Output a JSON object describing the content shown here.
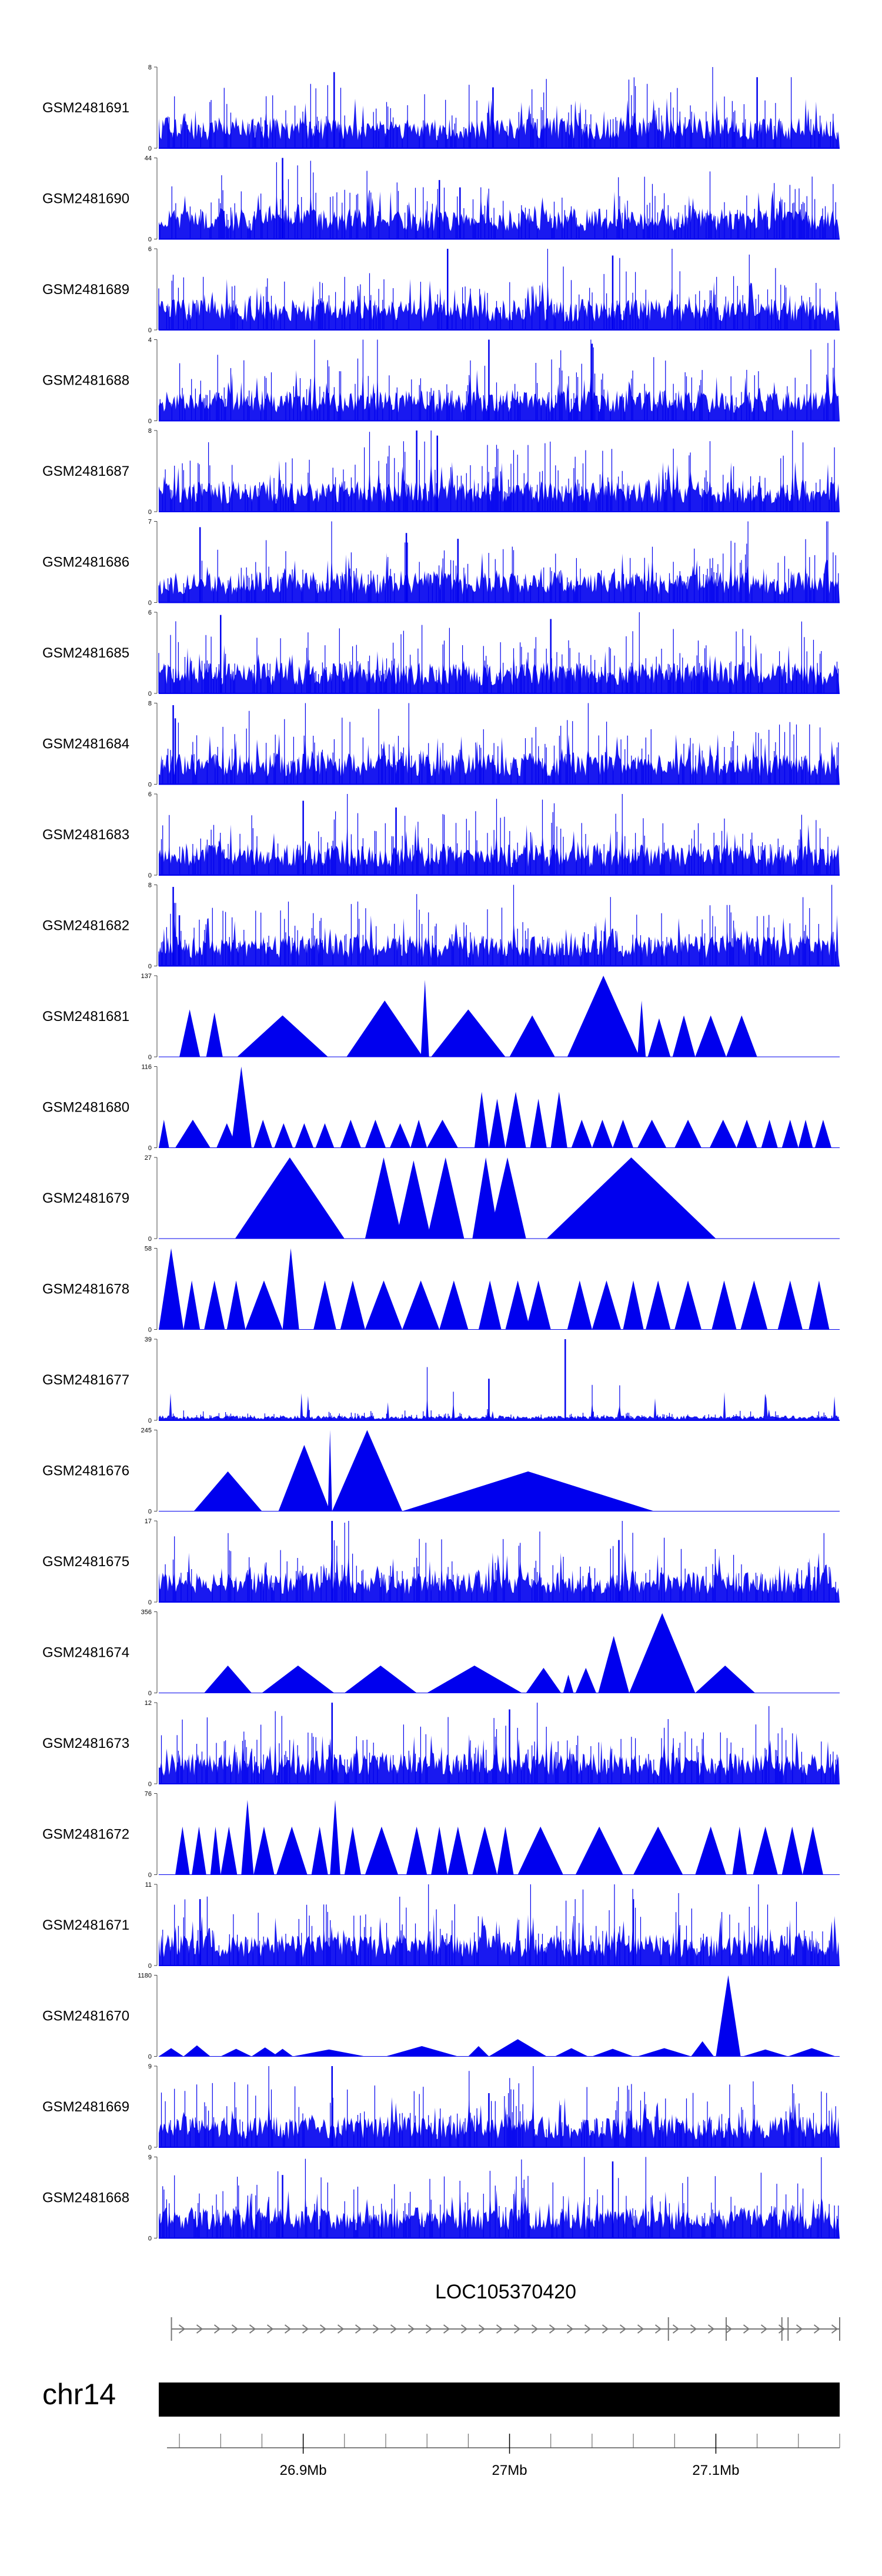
{
  "chart_data": {
    "type": "area",
    "title": "",
    "chromosome": "chr14",
    "color": "#0000ee",
    "xlim": [
      26.83,
      27.16
    ],
    "x_unit": "Mb",
    "x_ticks": [
      {
        "value": 26.9,
        "label": "26.9Mb"
      },
      {
        "value": 27.0,
        "label": "27Mb"
      },
      {
        "value": 27.1,
        "label": "27.1Mb"
      }
    ],
    "gene": {
      "name": "LOC105370420",
      "start": 26.837,
      "end": 27.16,
      "strand": "+",
      "exons": [
        27.077,
        27.105,
        27.132,
        27.135
      ]
    },
    "tracks": [
      {
        "name": "GSM2481691",
        "ymax": 8,
        "style": "dense",
        "seed": 11,
        "peaks": [
          [
            26.915,
            7.5
          ],
          [
            26.992,
            6
          ],
          [
            27.12,
            7
          ]
        ]
      },
      {
        "name": "GSM2481690",
        "ymax": 44,
        "style": "sparse",
        "seed": 12,
        "peaks": [
          [
            26.89,
            44
          ],
          [
            26.966,
            32
          ],
          [
            26.976,
            28
          ]
        ]
      },
      {
        "name": "GSM2481689",
        "ymax": 6,
        "style": "dense",
        "seed": 13,
        "peaks": [
          [
            26.97,
            6
          ],
          [
            27.05,
            5.5
          ]
        ]
      },
      {
        "name": "GSM2481688",
        "ymax": 4,
        "style": "dense",
        "seed": 14,
        "peaks": [
          [
            26.99,
            4
          ],
          [
            27.04,
            3.8
          ]
        ]
      },
      {
        "name": "GSM2481687",
        "ymax": 8,
        "style": "dense",
        "seed": 15,
        "peaks": [
          [
            26.955,
            8
          ],
          [
            26.965,
            7.5
          ]
        ]
      },
      {
        "name": "GSM2481686",
        "ymax": 7,
        "style": "dense",
        "seed": 16,
        "peaks": [
          [
            26.85,
            6.5
          ],
          [
            26.95,
            6
          ],
          [
            26.975,
            5.5
          ]
        ]
      },
      {
        "name": "GSM2481685",
        "ymax": 6,
        "style": "dense",
        "seed": 17,
        "peaks": [
          [
            26.86,
            5.8
          ],
          [
            27.02,
            5.5
          ]
        ]
      },
      {
        "name": "GSM2481684",
        "ymax": 8,
        "style": "dense",
        "seed": 18,
        "peaks": [
          [
            26.837,
            7.8
          ],
          [
            26.838,
            6.5
          ]
        ]
      },
      {
        "name": "GSM2481683",
        "ymax": 6,
        "style": "dense",
        "seed": 19,
        "peaks": [
          [
            26.9,
            5.5
          ],
          [
            26.945,
            5
          ]
        ]
      },
      {
        "name": "GSM2481682",
        "ymax": 8,
        "style": "dense",
        "seed": 20,
        "peaks": [
          [
            26.837,
            7.8
          ],
          [
            26.84,
            5
          ]
        ]
      },
      {
        "name": "GSM2481681",
        "ymax": 137,
        "style": "segments",
        "segments": [
          [
            26.84,
            26.85,
            80
          ],
          [
            26.853,
            26.861,
            75
          ],
          [
            26.868,
            26.912,
            70
          ],
          [
            26.921,
            26.958,
            95
          ],
          [
            26.957,
            26.961,
            130
          ],
          [
            26.962,
            26.998,
            80
          ],
          [
            27.0,
            27.022,
            70
          ],
          [
            27.028,
            27.063,
            137
          ],
          [
            27.062,
            27.066,
            95
          ],
          [
            27.067,
            27.078,
            65
          ],
          [
            27.079,
            27.09,
            70
          ],
          [
            27.09,
            27.105,
            70
          ],
          [
            27.105,
            27.12,
            70
          ]
        ]
      },
      {
        "name": "GSM2481680",
        "ymax": 116,
        "style": "segments",
        "segments": [
          [
            26.83,
            26.835,
            40
          ],
          [
            26.838,
            26.855,
            40
          ],
          [
            26.858,
            26.868,
            35
          ],
          [
            26.865,
            26.875,
            116
          ],
          [
            26.876,
            26.885,
            40
          ],
          [
            26.886,
            26.895,
            35
          ],
          [
            26.896,
            26.905,
            35
          ],
          [
            26.906,
            26.915,
            35
          ],
          [
            26.918,
            26.928,
            40
          ],
          [
            26.93,
            26.94,
            40
          ],
          [
            26.942,
            26.952,
            35
          ],
          [
            26.952,
            26.96,
            40
          ],
          [
            26.96,
            26.975,
            40
          ],
          [
            26.983,
            26.99,
            80
          ],
          [
            26.99,
            26.998,
            70
          ],
          [
            26.998,
            27.008,
            80
          ],
          [
            27.01,
            27.018,
            70
          ],
          [
            27.02,
            27.028,
            80
          ],
          [
            27.03,
            27.04,
            40
          ],
          [
            27.04,
            27.05,
            40
          ],
          [
            27.05,
            27.06,
            40
          ],
          [
            27.062,
            27.076,
            40
          ],
          [
            27.08,
            27.093,
            40
          ],
          [
            27.097,
            27.11,
            40
          ],
          [
            27.11,
            27.12,
            40
          ],
          [
            27.122,
            27.13,
            40
          ],
          [
            27.132,
            27.14,
            40
          ],
          [
            27.14,
            27.147,
            40
          ],
          [
            27.148,
            27.156,
            40
          ]
        ]
      },
      {
        "name": "GSM2481679",
        "ymax": 27,
        "style": "segments",
        "segments": [
          [
            26.867,
            26.92,
            27
          ],
          [
            26.93,
            26.948,
            27
          ],
          [
            26.945,
            26.962,
            26
          ],
          [
            26.96,
            26.978,
            27
          ],
          [
            26.982,
            26.995,
            27
          ],
          [
            26.99,
            27.008,
            27
          ],
          [
            27.018,
            27.1,
            27
          ]
        ]
      },
      {
        "name": "GSM2481678",
        "ymax": 58,
        "style": "segments",
        "segments": [
          [
            26.83,
            26.842,
            58
          ],
          [
            26.842,
            26.85,
            35
          ],
          [
            26.852,
            26.862,
            35
          ],
          [
            26.863,
            26.872,
            35
          ],
          [
            26.872,
            26.89,
            35
          ],
          [
            26.89,
            26.898,
            58
          ],
          [
            26.905,
            26.916,
            35
          ],
          [
            26.918,
            26.93,
            35
          ],
          [
            26.93,
            26.948,
            35
          ],
          [
            26.948,
            26.966,
            35
          ],
          [
            26.966,
            26.98,
            35
          ],
          [
            26.985,
            26.996,
            35
          ],
          [
            26.998,
            27.01,
            35
          ],
          [
            27.008,
            27.02,
            35
          ],
          [
            27.028,
            27.04,
            35
          ],
          [
            27.04,
            27.054,
            35
          ],
          [
            27.055,
            27.065,
            35
          ],
          [
            27.066,
            27.078,
            35
          ],
          [
            27.08,
            27.093,
            35
          ],
          [
            27.098,
            27.11,
            35
          ],
          [
            27.112,
            27.125,
            35
          ],
          [
            27.13,
            27.142,
            35
          ],
          [
            27.145,
            27.155,
            35
          ]
        ]
      },
      {
        "name": "GSM2481677",
        "ymax": 39,
        "style": "dense-low",
        "seed": 21,
        "peaks": [
          [
            26.99,
            20
          ],
          [
            27.027,
            39
          ]
        ]
      },
      {
        "name": "GSM2481676",
        "ymax": 245,
        "style": "segments",
        "segments": [
          [
            26.847,
            26.88,
            120
          ],
          [
            26.888,
            26.913,
            200
          ],
          [
            26.912,
            26.914,
            245
          ],
          [
            26.914,
            26.948,
            245
          ],
          [
            26.948,
            27.07,
            120
          ]
        ]
      },
      {
        "name": "GSM2481675",
        "ymax": 17,
        "style": "dense",
        "seed": 22,
        "peaks": [
          [
            26.914,
            17
          ],
          [
            27.053,
            13
          ]
        ]
      },
      {
        "name": "GSM2481674",
        "ymax": 356,
        "style": "segments",
        "segments": [
          [
            26.852,
            26.875,
            120
          ],
          [
            26.88,
            26.915,
            120
          ],
          [
            26.92,
            26.955,
            120
          ],
          [
            26.96,
            27.006,
            120
          ],
          [
            27.008,
            27.025,
            110
          ],
          [
            27.026,
            27.031,
            80
          ],
          [
            27.032,
            27.042,
            110
          ],
          [
            27.043,
            27.058,
            250
          ],
          [
            27.058,
            27.09,
            350
          ],
          [
            27.09,
            27.119,
            120
          ]
        ]
      },
      {
        "name": "GSM2481673",
        "ymax": 12,
        "style": "dense",
        "seed": 23,
        "peaks": [
          [
            26.914,
            12
          ],
          [
            27.0,
            11
          ]
        ]
      },
      {
        "name": "GSM2481672",
        "ymax": 76,
        "style": "segments",
        "segments": [
          [
            26.838,
            26.845,
            45
          ],
          [
            26.846,
            26.853,
            45
          ],
          [
            26.855,
            26.86,
            45
          ],
          [
            26.86,
            26.868,
            45
          ],
          [
            26.87,
            26.876,
            70
          ],
          [
            26.876,
            26.886,
            45
          ],
          [
            26.887,
            26.902,
            45
          ],
          [
            26.904,
            26.912,
            45
          ],
          [
            26.913,
            26.918,
            70
          ],
          [
            26.92,
            26.928,
            45
          ],
          [
            26.93,
            26.946,
            45
          ],
          [
            26.95,
            26.96,
            45
          ],
          [
            26.962,
            26.97,
            45
          ],
          [
            26.97,
            26.98,
            45
          ],
          [
            26.982,
            26.994,
            45
          ],
          [
            26.994,
            27.002,
            45
          ],
          [
            27.004,
            27.026,
            45
          ],
          [
            27.032,
            27.055,
            45
          ],
          [
            27.06,
            27.084,
            45
          ],
          [
            27.09,
            27.105,
            45
          ],
          [
            27.108,
            27.115,
            45
          ],
          [
            27.118,
            27.13,
            45
          ],
          [
            27.132,
            27.142,
            45
          ],
          [
            27.142,
            27.152,
            45
          ]
        ]
      },
      {
        "name": "GSM2481671",
        "ymax": 11,
        "style": "dense",
        "seed": 24,
        "peaks": [
          [
            26.85,
            9
          ],
          [
            27.06,
            9
          ]
        ]
      },
      {
        "name": "GSM2481670",
        "ymax": 1180,
        "style": "segments",
        "segments": [
          [
            26.83,
            26.842,
            120
          ],
          [
            26.842,
            26.855,
            160
          ],
          [
            26.86,
            26.875,
            110
          ],
          [
            26.875,
            26.888,
            130
          ],
          [
            26.885,
            26.895,
            110
          ],
          [
            26.895,
            26.93,
            100
          ],
          [
            26.94,
            26.975,
            150
          ],
          [
            26.98,
            26.99,
            150
          ],
          [
            26.99,
            27.018,
            250
          ],
          [
            27.022,
            27.038,
            120
          ],
          [
            27.04,
            27.06,
            110
          ],
          [
            27.062,
            27.088,
            120
          ],
          [
            27.088,
            27.099,
            220
          ],
          [
            27.1,
            27.112,
            1180
          ],
          [
            27.113,
            27.135,
            100
          ],
          [
            27.135,
            27.158,
            120
          ]
        ]
      },
      {
        "name": "GSM2481669",
        "ymax": 9,
        "style": "dense",
        "seed": 25,
        "peaks": [
          [
            26.914,
            9
          ],
          [
            26.99,
            6
          ]
        ]
      },
      {
        "name": "GSM2481668",
        "ymax": 9,
        "style": "dense",
        "seed": 26,
        "peaks": [
          [
            27.05,
            8.5
          ],
          [
            26.89,
            7
          ]
        ]
      }
    ]
  }
}
